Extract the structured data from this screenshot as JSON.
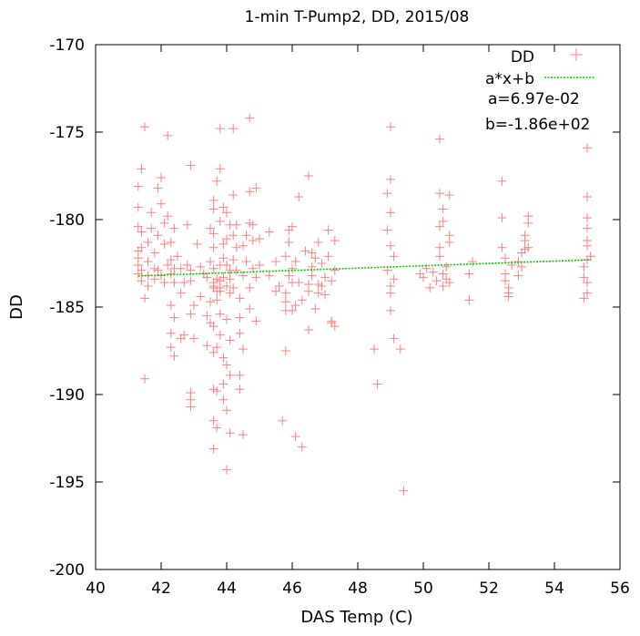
{
  "chart_data": {
    "type": "scatter",
    "title": "1-min T-Pump2, DD, 2015/08",
    "xlabel": "DAS Temp (C)",
    "ylabel": "DD",
    "xlim": [
      40,
      56
    ],
    "ylim": [
      -200,
      -170
    ],
    "xticks": [
      "40",
      "42",
      "44",
      "46",
      "48",
      "50",
      "52",
      "54",
      "56"
    ],
    "yticks": [
      "-170",
      "-175",
      "-180",
      "-185",
      "-190",
      "-195",
      "-200"
    ],
    "grid": false,
    "legend_position": "top-right",
    "series": [
      {
        "name": "DD",
        "marker": "plus",
        "color": "#ff8080",
        "points": [
          [
            41.3,
            -182.2
          ],
          [
            41.3,
            -181.8
          ],
          [
            41.3,
            -182.6
          ],
          [
            41.3,
            -178.1
          ],
          [
            41.3,
            -179.3
          ],
          [
            41.3,
            -180.4
          ],
          [
            41.3,
            -183.1
          ],
          [
            41.4,
            -181.6
          ],
          [
            41.4,
            -182.9
          ],
          [
            41.4,
            -180.7
          ],
          [
            41.4,
            -183.5
          ],
          [
            41.4,
            -177.1
          ],
          [
            41.5,
            -174.7
          ],
          [
            41.5,
            -189.1
          ],
          [
            41.5,
            -184.5
          ],
          [
            41.6,
            -183.2
          ],
          [
            41.6,
            -181.3
          ],
          [
            41.6,
            -182.4
          ],
          [
            41.6,
            -183.8
          ],
          [
            41.7,
            -180.5
          ],
          [
            41.7,
            -179.6
          ],
          [
            41.8,
            -182.8
          ],
          [
            41.8,
            -183.4
          ],
          [
            41.8,
            -181.9
          ],
          [
            41.9,
            -178.2
          ],
          [
            41.9,
            -180.9
          ],
          [
            41.9,
            -182.9
          ],
          [
            42.0,
            -183.2
          ],
          [
            42.0,
            -177.6
          ],
          [
            42.0,
            -179.1
          ],
          [
            42.1,
            -180.2
          ],
          [
            42.1,
            -181.4
          ],
          [
            42.1,
            -183.6
          ],
          [
            42.2,
            -175.2
          ],
          [
            42.2,
            -182.6
          ],
          [
            42.2,
            -179.8
          ],
          [
            42.3,
            -184.9
          ],
          [
            42.3,
            -186.5
          ],
          [
            42.3,
            -187.3
          ],
          [
            42.3,
            -181.3
          ],
          [
            42.3,
            -183.1
          ],
          [
            42.3,
            -182.3
          ],
          [
            42.4,
            -185.6
          ],
          [
            42.4,
            -187.8
          ],
          [
            42.4,
            -183.6
          ],
          [
            42.4,
            -180.5
          ],
          [
            42.4,
            -182.8
          ],
          [
            42.5,
            -182.1
          ],
          [
            42.6,
            -186.8
          ],
          [
            42.6,
            -184.2
          ],
          [
            42.6,
            -182.8
          ],
          [
            42.7,
            -186.6
          ],
          [
            42.7,
            -183.6
          ],
          [
            42.8,
            -182.6
          ],
          [
            42.8,
            -180.3
          ],
          [
            42.9,
            -176.9
          ],
          [
            42.9,
            -182.9
          ],
          [
            42.9,
            -183.5
          ],
          [
            42.9,
            -185.4
          ],
          [
            42.9,
            -190.7
          ],
          [
            42.9,
            -190.3
          ],
          [
            42.9,
            -189.9
          ],
          [
            43.0,
            -186.8
          ],
          [
            43.0,
            -184.9
          ],
          [
            43.1,
            -181.4
          ],
          [
            43.2,
            -182.7
          ],
          [
            43.2,
            -184.4
          ],
          [
            43.3,
            -183.1
          ],
          [
            43.4,
            -187.2
          ],
          [
            43.4,
            -185.5
          ],
          [
            43.4,
            -183.3
          ],
          [
            43.5,
            -180.5
          ],
          [
            43.5,
            -182.4
          ],
          [
            43.5,
            -184.7
          ],
          [
            43.5,
            -185.9
          ],
          [
            43.6,
            -193.1
          ],
          [
            43.6,
            -191.5
          ],
          [
            43.6,
            -189.7
          ],
          [
            43.6,
            -187.6
          ],
          [
            43.6,
            -186.1
          ],
          [
            43.6,
            -183.8
          ],
          [
            43.6,
            -183.6
          ],
          [
            43.6,
            -183.9
          ],
          [
            43.6,
            -182.8
          ],
          [
            43.6,
            -181.6
          ],
          [
            43.6,
            -180.8
          ],
          [
            43.6,
            -179.4
          ],
          [
            43.6,
            -178.9
          ],
          [
            43.7,
            -177.8
          ],
          [
            43.7,
            -184.1
          ],
          [
            43.7,
            -183.4
          ],
          [
            43.7,
            -184.6
          ],
          [
            43.7,
            -187.3
          ],
          [
            43.7,
            -189.8
          ],
          [
            43.7,
            -191.9
          ],
          [
            43.8,
            -174.8
          ],
          [
            43.8,
            -177.1
          ],
          [
            43.8,
            -180.1
          ],
          [
            43.8,
            -182.6
          ],
          [
            43.8,
            -183.9
          ],
          [
            43.8,
            -183.5
          ],
          [
            43.8,
            -184.1
          ],
          [
            43.8,
            -185.4
          ],
          [
            43.8,
            -186.6
          ],
          [
            43.9,
            -183.3
          ],
          [
            43.9,
            -181.4
          ],
          [
            43.9,
            -179.3
          ],
          [
            43.9,
            -187.9
          ],
          [
            43.9,
            -189.4
          ],
          [
            43.9,
            -190.3
          ],
          [
            43.9,
            -182.2
          ],
          [
            44.0,
            -194.3
          ],
          [
            44.0,
            -190.9
          ],
          [
            44.0,
            -188.3
          ],
          [
            44.0,
            -185.7
          ],
          [
            44.0,
            -183.8
          ],
          [
            44.0,
            -182.6
          ],
          [
            44.0,
            -181.1
          ],
          [
            44.0,
            -179.6
          ],
          [
            44.1,
            -192.2
          ],
          [
            44.1,
            -188.9
          ],
          [
            44.1,
            -186.9
          ],
          [
            44.1,
            -184.2
          ],
          [
            44.1,
            -182.9
          ],
          [
            44.1,
            -183.4
          ],
          [
            44.1,
            -180.3
          ],
          [
            44.2,
            -174.8
          ],
          [
            44.2,
            -178.6
          ],
          [
            44.2,
            -180.9
          ],
          [
            44.2,
            -182.3
          ],
          [
            44.2,
            -183.9
          ],
          [
            44.3,
            -181.6
          ],
          [
            44.3,
            -182.9
          ],
          [
            44.3,
            -180.3
          ],
          [
            44.4,
            -184.5
          ],
          [
            44.4,
            -185.6
          ],
          [
            44.4,
            -186.5
          ],
          [
            44.4,
            -188.9
          ],
          [
            44.4,
            -189.7
          ],
          [
            44.5,
            -192.3
          ],
          [
            44.5,
            -187.4
          ],
          [
            44.5,
            -183.2
          ],
          [
            44.5,
            -181.5
          ],
          [
            44.6,
            -180.9
          ],
          [
            44.6,
            -182.4
          ],
          [
            44.7,
            -174.2
          ],
          [
            44.7,
            -178.4
          ],
          [
            44.7,
            -180.2
          ],
          [
            44.7,
            -183.9
          ],
          [
            44.7,
            -185.1
          ],
          [
            44.8,
            -181.2
          ],
          [
            44.8,
            -182.8
          ],
          [
            44.8,
            -180.3
          ],
          [
            44.9,
            -178.2
          ],
          [
            44.9,
            -183.3
          ],
          [
            44.9,
            -185.8
          ],
          [
            45.0,
            -181.1
          ],
          [
            45.0,
            -182.6
          ],
          [
            45.3,
            -183.2
          ],
          [
            45.3,
            -180.7
          ],
          [
            45.5,
            -184.1
          ],
          [
            45.5,
            -182.4
          ],
          [
            45.6,
            -183.8
          ],
          [
            45.7,
            -191.5
          ],
          [
            45.8,
            -187.5
          ],
          [
            45.8,
            -185.2
          ],
          [
            45.8,
            -184.7
          ],
          [
            45.8,
            -184.2
          ],
          [
            45.8,
            -182.1
          ],
          [
            45.9,
            -183.2
          ],
          [
            45.9,
            -180.6
          ],
          [
            45.9,
            -181.3
          ],
          [
            46.0,
            -185.2
          ],
          [
            46.0,
            -183.6
          ],
          [
            46.0,
            -182.8
          ],
          [
            46.0,
            -180.4
          ],
          [
            46.1,
            -192.4
          ],
          [
            46.1,
            -184.9
          ],
          [
            46.1,
            -182.4
          ],
          [
            46.2,
            -178.7
          ],
          [
            46.2,
            -183.6
          ],
          [
            46.3,
            -193.0
          ],
          [
            46.3,
            -184.6
          ],
          [
            46.4,
            -181.8
          ],
          [
            46.5,
            -177.5
          ],
          [
            46.5,
            -183.7
          ],
          [
            46.5,
            -186.3
          ],
          [
            46.5,
            -184.1
          ],
          [
            46.6,
            -182.7
          ],
          [
            46.6,
            -181.9
          ],
          [
            46.6,
            -183.2
          ],
          [
            46.7,
            -185.1
          ],
          [
            46.7,
            -182.2
          ],
          [
            46.8,
            -183.7
          ],
          [
            46.8,
            -184.2
          ],
          [
            46.8,
            -181.3
          ],
          [
            46.9,
            -183.8
          ],
          [
            46.9,
            -182.5
          ],
          [
            47.0,
            -183.3
          ],
          [
            47.0,
            -184.3
          ],
          [
            47.1,
            -180.6
          ],
          [
            47.1,
            -182.1
          ],
          [
            47.2,
            -183.5
          ],
          [
            47.2,
            -185.8
          ],
          [
            47.2,
            -185.9
          ],
          [
            47.3,
            -181.2
          ],
          [
            47.3,
            -182.9
          ],
          [
            47.3,
            -186.1
          ],
          [
            48.5,
            -187.4
          ],
          [
            48.6,
            -189.4
          ],
          [
            48.9,
            -182.9
          ],
          [
            48.9,
            -180.6
          ],
          [
            48.9,
            -178.5
          ],
          [
            49.0,
            -174.7
          ],
          [
            49.0,
            -177.7
          ],
          [
            49.0,
            -179.6
          ],
          [
            49.0,
            -181.5
          ],
          [
            49.0,
            -183.8
          ],
          [
            49.0,
            -184.2
          ],
          [
            49.0,
            -185.2
          ],
          [
            49.1,
            -182.1
          ],
          [
            49.1,
            -186.8
          ],
          [
            49.1,
            -183.4
          ],
          [
            49.3,
            -187.4
          ],
          [
            49.4,
            -195.5
          ],
          [
            49.9,
            -183.1
          ],
          [
            50.0,
            -183.3
          ],
          [
            50.1,
            -182.8
          ],
          [
            50.2,
            -183.9
          ],
          [
            50.3,
            -183.0
          ],
          [
            50.4,
            -183.5
          ],
          [
            50.5,
            -175.4
          ],
          [
            50.5,
            -178.5
          ],
          [
            50.5,
            -180.4
          ],
          [
            50.5,
            -181.6
          ],
          [
            50.5,
            -182.1
          ],
          [
            50.6,
            -183.1
          ],
          [
            50.6,
            -183.8
          ],
          [
            50.6,
            -180.1
          ],
          [
            50.6,
            -179.4
          ],
          [
            50.7,
            -182.7
          ],
          [
            50.7,
            -183.4
          ],
          [
            50.8,
            -181.3
          ],
          [
            50.8,
            -178.6
          ],
          [
            50.8,
            -180.9
          ],
          [
            50.8,
            -183.6
          ],
          [
            51.4,
            -184.6
          ],
          [
            51.4,
            -183.1
          ],
          [
            51.5,
            -182.4
          ],
          [
            52.4,
            -177.8
          ],
          [
            52.4,
            -179.9
          ],
          [
            52.4,
            -181.6
          ],
          [
            52.5,
            -182.2
          ],
          [
            52.5,
            -183.1
          ],
          [
            52.5,
            -183.5
          ],
          [
            52.6,
            -183.9
          ],
          [
            52.6,
            -184.4
          ],
          [
            52.6,
            -184.2
          ],
          [
            52.7,
            -182.6
          ],
          [
            52.9,
            -183.2
          ],
          [
            52.9,
            -182.4
          ],
          [
            53.0,
            -181.9
          ],
          [
            53.0,
            -182.7
          ],
          [
            53.1,
            -181.2
          ],
          [
            53.1,
            -181.7
          ],
          [
            53.1,
            -180.9
          ],
          [
            53.2,
            -179.8
          ],
          [
            53.2,
            -181.6
          ],
          [
            53.2,
            -180.2
          ],
          [
            54.9,
            -184.5
          ],
          [
            54.9,
            -183.3
          ],
          [
            54.9,
            -182.7
          ],
          [
            55.0,
            -182.3
          ],
          [
            55.0,
            -181.5
          ],
          [
            55.0,
            -181.2
          ],
          [
            55.0,
            -180.5
          ],
          [
            55.0,
            -179.9
          ],
          [
            55.0,
            -178.7
          ],
          [
            55.0,
            -175.9
          ],
          [
            55.0,
            -183.6
          ],
          [
            55.0,
            -184.2
          ],
          [
            55.1,
            -182.1
          ]
        ]
      },
      {
        "name": "a*x+b",
        "line": "dashed",
        "color": "#00cc00",
        "x": [
          41.3,
          55.1
        ],
        "y": [
          -183.22,
          -182.3
        ]
      }
    ],
    "annotations": [
      "a=6.97e-02",
      "b=-1.86e+02"
    ]
  }
}
